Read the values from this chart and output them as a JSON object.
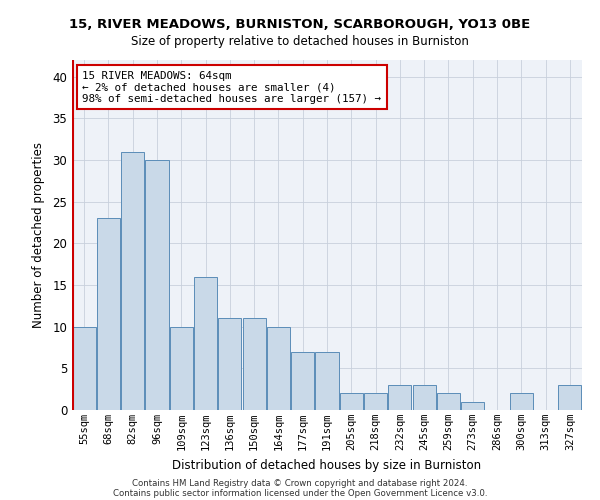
{
  "title1": "15, RIVER MEADOWS, BURNISTON, SCARBOROUGH, YO13 0BE",
  "title2": "Size of property relative to detached houses in Burniston",
  "xlabel": "Distribution of detached houses by size in Burniston",
  "ylabel": "Number of detached properties",
  "categories": [
    "55sqm",
    "68sqm",
    "82sqm",
    "96sqm",
    "109sqm",
    "123sqm",
    "136sqm",
    "150sqm",
    "164sqm",
    "177sqm",
    "191sqm",
    "205sqm",
    "218sqm",
    "232sqm",
    "245sqm",
    "259sqm",
    "273sqm",
    "286sqm",
    "300sqm",
    "313sqm",
    "327sqm"
  ],
  "values": [
    10,
    23,
    31,
    30,
    10,
    16,
    11,
    11,
    10,
    7,
    7,
    2,
    2,
    3,
    3,
    2,
    1,
    0,
    2,
    0,
    3
  ],
  "bar_color": "#c9d9e8",
  "bar_edge_color": "#5b8db8",
  "grid_color": "#c8d0dc",
  "background_color": "#eef2f8",
  "ylim": [
    0,
    42
  ],
  "yticks": [
    0,
    5,
    10,
    15,
    20,
    25,
    30,
    35,
    40
  ],
  "marker_color": "#cc0000",
  "annotation_text": "15 RIVER MEADOWS: 64sqm\n← 2% of detached houses are smaller (4)\n98% of semi-detached houses are larger (157) →",
  "annotation_box_color": "#ffffff",
  "annotation_box_edge": "#cc0000",
  "footer1": "Contains HM Land Registry data © Crown copyright and database right 2024.",
  "footer2": "Contains public sector information licensed under the Open Government Licence v3.0."
}
